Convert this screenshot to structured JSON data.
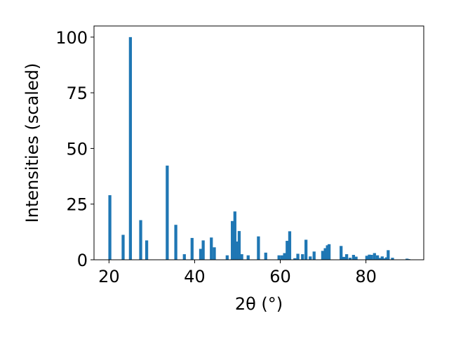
{
  "chart_data": {
    "type": "bar",
    "xlabel": "2θ (°)",
    "ylabel": "Intensities (scaled)",
    "xlim": [
      16.5,
      93.5
    ],
    "ylim": [
      0,
      105
    ],
    "xticks": [
      20,
      40,
      60,
      80
    ],
    "yticks": [
      0,
      25,
      50,
      75,
      100
    ],
    "bar_width": 0.7,
    "color": "#1f77b4",
    "grid": false,
    "x": [
      20.2,
      23.3,
      25.0,
      27.4,
      28.8,
      33.6,
      35.6,
      37.6,
      39.4,
      41.4,
      42.0,
      43.9,
      44.6,
      47.6,
      48.8,
      49.4,
      49.9,
      50.4,
      51.0,
      52.5,
      54.9,
      56.6,
      59.7,
      60.4,
      61.0,
      61.6,
      62.2,
      63.4,
      64.1,
      65.2,
      66.0,
      67.0,
      67.9,
      69.9,
      70.5,
      71.0,
      71.4,
      74.2,
      74.8,
      75.5,
      76.3,
      77.1,
      77.7,
      80.2,
      80.8,
      81.3,
      82.0,
      82.7,
      83.3,
      83.8,
      84.2,
      84.8,
      85.2,
      86.2,
      89.6,
      90.0
    ],
    "values": [
      29.0,
      11.2,
      100.0,
      17.8,
      8.7,
      42.3,
      15.7,
      2.5,
      9.8,
      4.9,
      8.7,
      10.0,
      5.6,
      2.0,
      17.4,
      21.7,
      8.2,
      12.9,
      2.5,
      2.0,
      10.5,
      3.2,
      2.0,
      2.0,
      3.0,
      8.5,
      12.8,
      0.7,
      2.7,
      2.5,
      9.0,
      1.5,
      3.7,
      4.0,
      5.2,
      6.5,
      7.0,
      6.2,
      1.3,
      2.5,
      0.9,
      2.2,
      1.4,
      1.8,
      2.3,
      2.2,
      3.0,
      2.0,
      0.8,
      1.5,
      0.6,
      1.1,
      4.3,
      0.9,
      0.5,
      0.3
    ]
  }
}
